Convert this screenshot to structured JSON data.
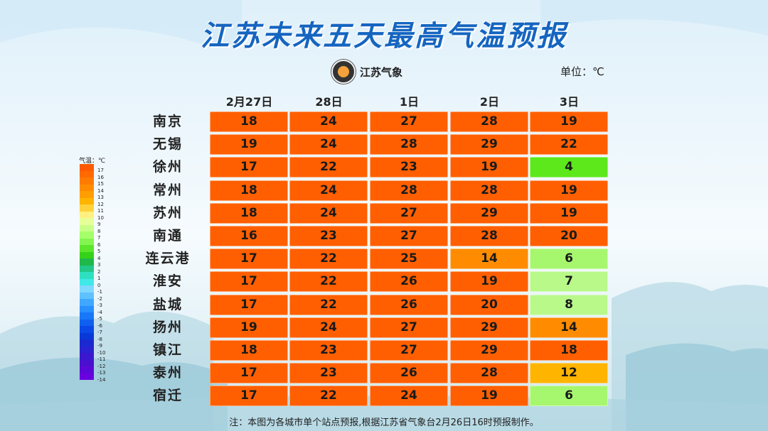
{
  "title": "江苏未来五天最高气温预报",
  "logo_text": "江苏气象",
  "unit": "单位：℃",
  "note": "注：本图为各城市单个站点预报,根据江苏省气象台2月26日16时预报制作。",
  "legend": {
    "title": "气温：℃",
    "labels": [
      "17",
      "16",
      "15",
      "14",
      "13",
      "12",
      "11",
      "10",
      "9",
      "8",
      "7",
      "6",
      "5",
      "4",
      "3",
      "2",
      "1",
      "0",
      "-1",
      "-2",
      "-3",
      "-4",
      "-5",
      "-6",
      "-7",
      "-8",
      "-9",
      "-10",
      "-11",
      "-12",
      "-13",
      "-14"
    ],
    "colors": [
      "#ff5a00",
      "#ff6a00",
      "#ff7b00",
      "#ff8c00",
      "#ff9e00",
      "#ffb400",
      "#ffd23c",
      "#fff080",
      "#e6ff99",
      "#c8ff88",
      "#a6ff6a",
      "#84f550",
      "#5be52c",
      "#36d21a",
      "#1fb84a",
      "#22c88a",
      "#2ee0c0",
      "#40e8e8",
      "#7fd8ff",
      "#5fc2ff",
      "#40a8ff",
      "#2890ff",
      "#1878f8",
      "#1060f0",
      "#0a48e8",
      "#0838d8",
      "#1a2ad0",
      "#2a22d0",
      "#3a18d0",
      "#4a10d0",
      "#5a08d8",
      "#6a00e0"
    ]
  },
  "chart_data": {
    "type": "table",
    "title": "江苏未来五天最高气温预报",
    "unit": "℃",
    "columns": [
      "2月27日",
      "28日",
      "1日",
      "2日",
      "3日"
    ],
    "rows": [
      {
        "city": "南京",
        "values": [
          18,
          24,
          27,
          28,
          19
        ]
      },
      {
        "city": "无锡",
        "values": [
          19,
          24,
          28,
          29,
          22
        ]
      },
      {
        "city": "徐州",
        "values": [
          17,
          22,
          23,
          19,
          4
        ]
      },
      {
        "city": "常州",
        "values": [
          18,
          24,
          28,
          28,
          19
        ]
      },
      {
        "city": "苏州",
        "values": [
          18,
          24,
          27,
          29,
          19
        ]
      },
      {
        "city": "南通",
        "values": [
          16,
          23,
          27,
          28,
          20
        ]
      },
      {
        "city": "连云港",
        "values": [
          17,
          22,
          25,
          14,
          6
        ]
      },
      {
        "city": "淮安",
        "values": [
          17,
          22,
          26,
          19,
          7
        ]
      },
      {
        "city": "盐城",
        "values": [
          17,
          22,
          26,
          20,
          8
        ]
      },
      {
        "city": "扬州",
        "values": [
          19,
          24,
          27,
          29,
          14
        ]
      },
      {
        "city": "镇江",
        "values": [
          18,
          23,
          27,
          29,
          18
        ]
      },
      {
        "city": "泰州",
        "values": [
          17,
          23,
          26,
          28,
          12
        ]
      },
      {
        "city": "宿迁",
        "values": [
          17,
          22,
          24,
          19,
          6
        ]
      }
    ]
  }
}
